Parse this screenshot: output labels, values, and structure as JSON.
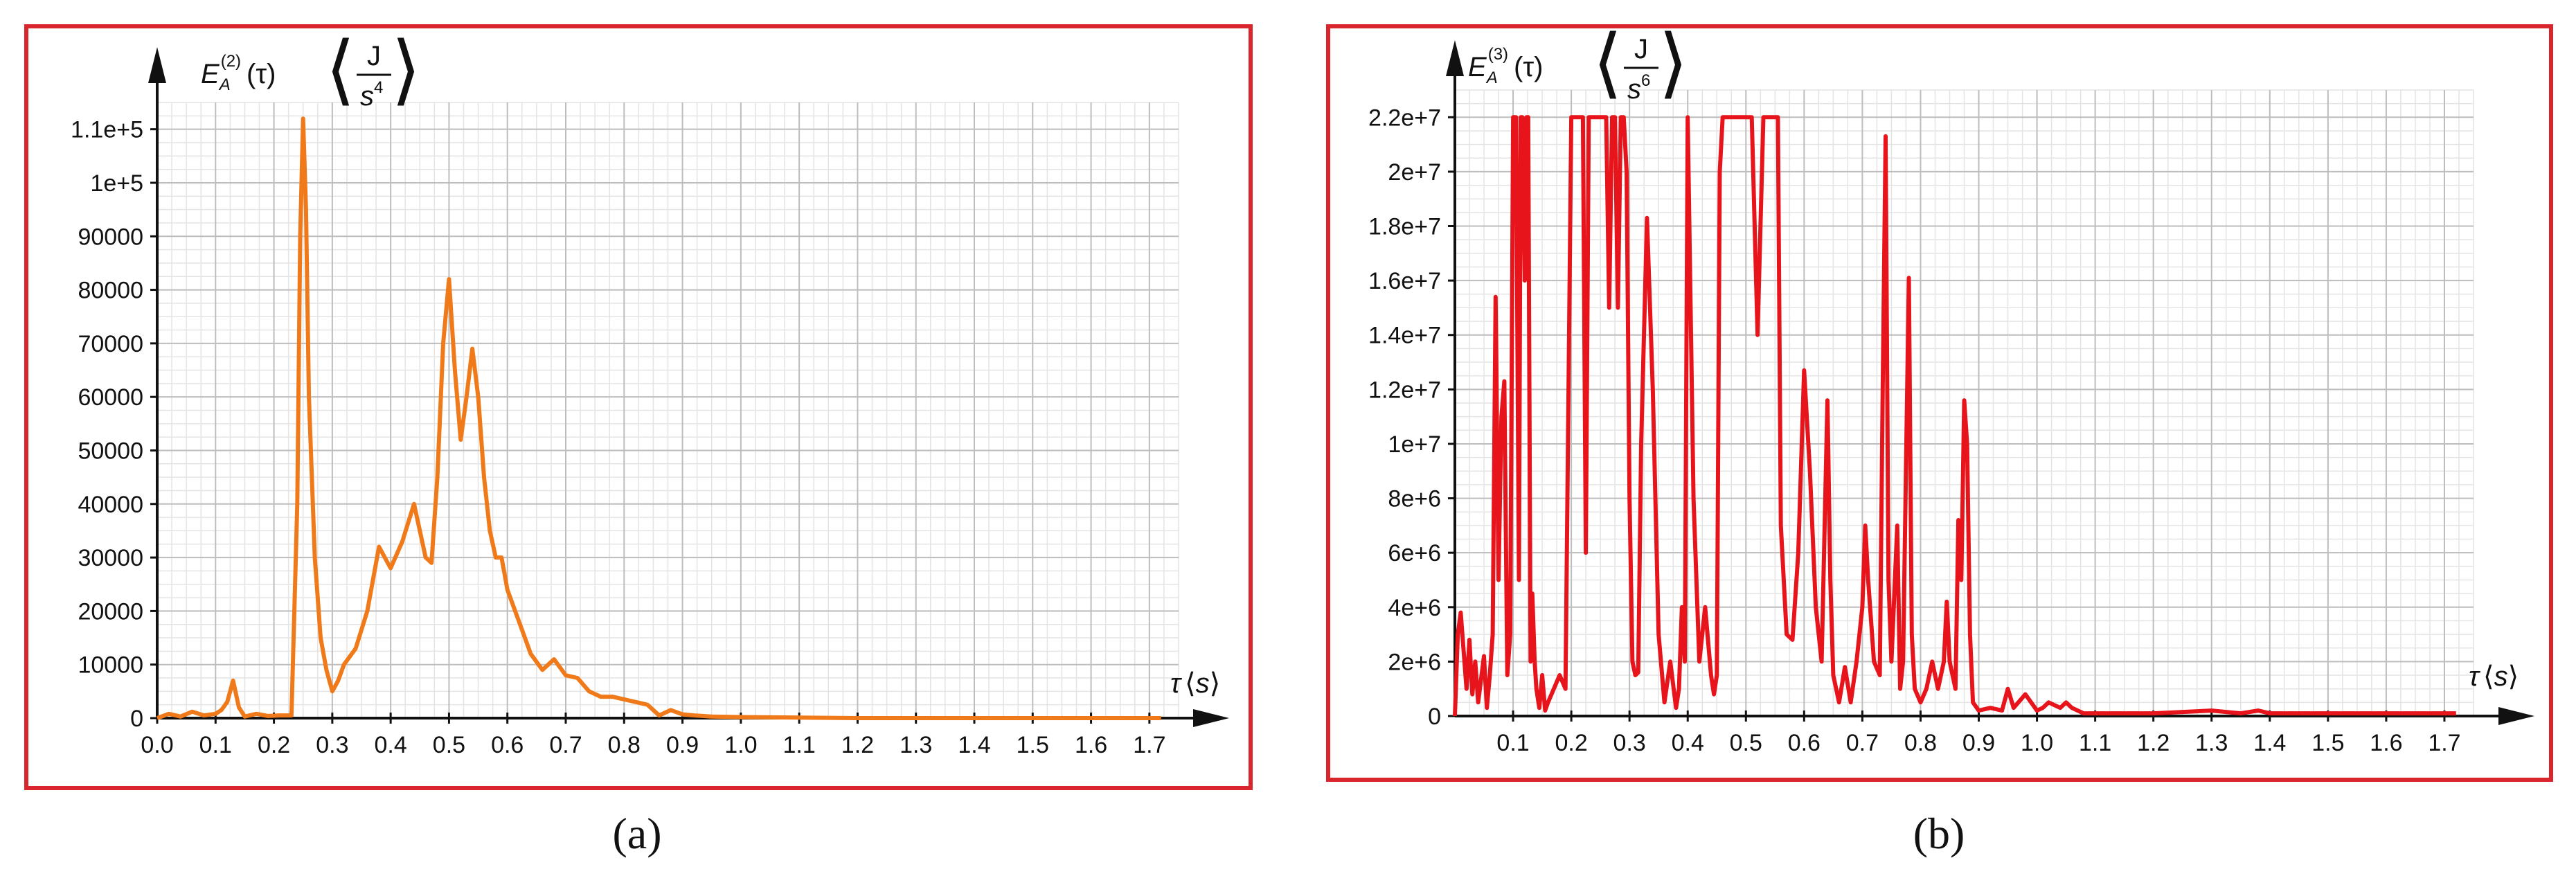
{
  "captions": [
    "(a)",
    "(b)"
  ],
  "chart_data": [
    {
      "type": "line",
      "title": "",
      "ylabel": {
        "main": "E",
        "sub": "A",
        "sup": "(2)",
        "arg": "(τ)",
        "unit_num": "J",
        "unit_den": "s",
        "unit_den_pow": "4"
      },
      "xlabel": {
        "main": "τ",
        "unit": "s"
      },
      "xlim": [
        0,
        1.75
      ],
      "ylim": [
        0,
        115000
      ],
      "xticks": [
        "0.0",
        "0.1",
        "0.2",
        "0.3",
        "0.4",
        "0.5",
        "0.6",
        "0.7",
        "0.8",
        "0.9",
        "1.0",
        "1.1",
        "1.2",
        "1.3",
        "1.4",
        "1.5",
        "1.6",
        "1.7"
      ],
      "yticks": [
        "0",
        "10000",
        "20000",
        "30000",
        "40000",
        "50000",
        "60000",
        "70000",
        "80000",
        "90000",
        "1e+5",
        "1.1e+5"
      ],
      "grid": true,
      "legend": "none",
      "color": "#f07a1a",
      "series": [
        {
          "x": [
            0.0,
            0.02,
            0.04,
            0.06,
            0.08,
            0.1,
            0.11,
            0.12,
            0.13,
            0.14,
            0.15,
            0.17,
            0.19,
            0.21,
            0.23,
            0.24,
            0.245,
            0.25,
            0.255,
            0.26,
            0.27,
            0.28,
            0.29,
            0.3,
            0.31,
            0.32,
            0.34,
            0.36,
            0.38,
            0.4,
            0.42,
            0.44,
            0.46,
            0.47,
            0.48,
            0.49,
            0.5,
            0.51,
            0.52,
            0.53,
            0.54,
            0.55,
            0.56,
            0.57,
            0.58,
            0.59,
            0.6,
            0.62,
            0.64,
            0.66,
            0.68,
            0.7,
            0.72,
            0.74,
            0.76,
            0.78,
            0.8,
            0.82,
            0.84,
            0.86,
            0.88,
            0.9,
            0.92,
            0.95,
            1.0,
            1.1,
            1.2,
            1.3,
            1.4,
            1.5,
            1.6,
            1.7,
            1.72
          ],
          "y": [
            0,
            800,
            300,
            1200,
            500,
            800,
            1500,
            3000,
            7000,
            2000,
            300,
            800,
            400,
            500,
            500,
            40000,
            90000,
            112000,
            95000,
            60000,
            30000,
            15000,
            9000,
            5000,
            7000,
            10000,
            13000,
            20000,
            32000,
            28000,
            33000,
            40000,
            30000,
            29000,
            45000,
            70000,
            82000,
            65000,
            52000,
            60000,
            69000,
            60000,
            45000,
            35000,
            30000,
            30000,
            24000,
            18000,
            12000,
            9000,
            11000,
            8000,
            7500,
            5000,
            4000,
            4000,
            3500,
            3000,
            2500,
            500,
            1500,
            700,
            500,
            300,
            200,
            100,
            0,
            0,
            0,
            0,
            0,
            0,
            0
          ]
        }
      ]
    },
    {
      "type": "line",
      "title": "",
      "ylabel": {
        "main": "E",
        "sub": "A",
        "sup": "(3)",
        "arg": "(τ)",
        "unit_num": "J",
        "unit_den": "s",
        "unit_den_pow": "6"
      },
      "xlabel": {
        "main": "τ",
        "unit": "s"
      },
      "xlim": [
        0,
        1.75
      ],
      "ylim": [
        0,
        23000000
      ],
      "xticks": [
        "0.1",
        "0.2",
        "0.3",
        "0.4",
        "0.5",
        "0.6",
        "0.7",
        "0.8",
        "0.9",
        "1.0",
        "1.1",
        "1.2",
        "1.3",
        "1.4",
        "1.5",
        "1.6",
        "1.7"
      ],
      "yticks": [
        "0",
        "2e+6",
        "4e+6",
        "6e+6",
        "8e+6",
        "1e+7",
        "1.2e+7",
        "1.4e+7",
        "1.6e+7",
        "1.8e+7",
        "2e+7",
        "2.2e+7"
      ],
      "grid": true,
      "legend": "none",
      "color": "#e8141c",
      "series": [
        {
          "x": [
            0.0,
            0.005,
            0.01,
            0.02,
            0.025,
            0.03,
            0.035,
            0.04,
            0.05,
            0.055,
            0.06,
            0.065,
            0.07,
            0.075,
            0.08,
            0.085,
            0.09,
            0.095,
            0.1,
            0.105,
            0.11,
            0.113,
            0.116,
            0.12,
            0.123,
            0.126,
            0.13,
            0.133,
            0.137,
            0.14,
            0.145,
            0.15,
            0.155,
            0.16,
            0.17,
            0.18,
            0.19,
            0.2,
            0.21,
            0.22,
            0.225,
            0.23,
            0.235,
            0.24,
            0.245,
            0.25,
            0.255,
            0.26,
            0.265,
            0.27,
            0.275,
            0.28,
            0.285,
            0.29,
            0.295,
            0.3,
            0.305,
            0.31,
            0.315,
            0.32,
            0.33,
            0.34,
            0.35,
            0.36,
            0.37,
            0.38,
            0.385,
            0.39,
            0.395,
            0.4,
            0.41,
            0.42,
            0.43,
            0.44,
            0.445,
            0.45,
            0.455,
            0.46,
            0.47,
            0.48,
            0.49,
            0.5,
            0.51,
            0.52,
            0.525,
            0.53,
            0.535,
            0.54,
            0.545,
            0.55,
            0.555,
            0.56,
            0.57,
            0.58,
            0.59,
            0.6,
            0.61,
            0.62,
            0.63,
            0.64,
            0.645,
            0.65,
            0.66,
            0.67,
            0.68,
            0.69,
            0.7,
            0.705,
            0.71,
            0.72,
            0.73,
            0.735,
            0.74,
            0.745,
            0.75,
            0.76,
            0.765,
            0.77,
            0.78,
            0.785,
            0.79,
            0.8,
            0.81,
            0.82,
            0.83,
            0.84,
            0.845,
            0.85,
            0.86,
            0.865,
            0.87,
            0.875,
            0.88,
            0.885,
            0.89,
            0.9,
            0.92,
            0.94,
            0.95,
            0.96,
            0.98,
            1.0,
            1.01,
            1.02,
            1.04,
            1.05,
            1.06,
            1.07,
            1.08,
            1.1,
            1.2,
            1.3,
            1.35,
            1.38,
            1.4,
            1.45,
            1.5,
            1.55,
            1.6,
            1.65,
            1.7,
            1.72
          ],
          "y": [
            0,
            3000000,
            3800000,
            1000000,
            2800000,
            800000,
            2000000,
            500000,
            2200000,
            300000,
            1500000,
            3000000,
            15400000,
            5000000,
            11000000,
            12300000,
            1500000,
            3000000,
            22000000,
            22000000,
            5000000,
            22000000,
            22000000,
            16000000,
            22000000,
            22000000,
            2000000,
            4500000,
            2000000,
            1000000,
            300000,
            1500000,
            200000,
            500000,
            1000000,
            1500000,
            1000000,
            22000000,
            22000000,
            22000000,
            6000000,
            22000000,
            22000000,
            22000000,
            22000000,
            22000000,
            22000000,
            22000000,
            15000000,
            22000000,
            22000000,
            15000000,
            22000000,
            22000000,
            20000000,
            8000000,
            2000000,
            1500000,
            1600000,
            10000000,
            18300000,
            12000000,
            3000000,
            500000,
            2000000,
            300000,
            1000000,
            4000000,
            2000000,
            22000000,
            8000000,
            2000000,
            4000000,
            1500000,
            800000,
            1500000,
            20000000,
            22000000,
            22000000,
            22000000,
            22000000,
            22000000,
            22000000,
            14000000,
            18000000,
            22000000,
            22000000,
            22000000,
            22000000,
            22000000,
            22000000,
            7000000,
            3000000,
            2800000,
            6000000,
            12700000,
            9000000,
            4000000,
            2000000,
            11600000,
            5000000,
            1500000,
            500000,
            1800000,
            500000,
            2000000,
            4000000,
            7000000,
            5000000,
            2000000,
            1500000,
            12000000,
            21300000,
            5000000,
            2000000,
            7000000,
            1000000,
            2000000,
            16100000,
            3000000,
            1000000,
            500000,
            1000000,
            2000000,
            1000000,
            2000000,
            4200000,
            2000000,
            1000000,
            7200000,
            5000000,
            11600000,
            10000000,
            3000000,
            500000,
            200000,
            300000,
            200000,
            1000000,
            300000,
            800000,
            200000,
            300000,
            500000,
            300000,
            500000,
            300000,
            200000,
            100000,
            100000,
            100000,
            200000,
            100000,
            200000,
            100000,
            100000,
            100000,
            100000,
            100000,
            100000,
            100000,
            100000
          ]
        }
      ]
    }
  ]
}
